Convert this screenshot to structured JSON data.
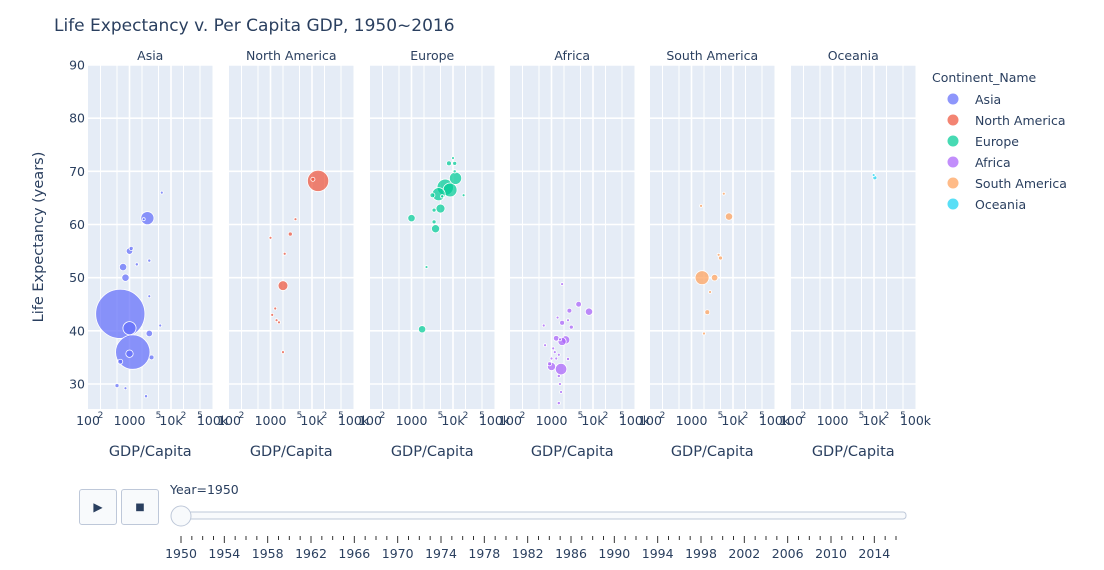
{
  "chart_data": {
    "type": "scatter",
    "title": "Life Expectancy v. Per Capita GDP, 1950~2016",
    "xlabel": "GDP/Capita",
    "ylabel": "Life Expectancy (years)",
    "x_scale": "log",
    "xlim": [
      100,
      100000
    ],
    "ylim": [
      25.3,
      90
    ],
    "y_ticks": [
      30,
      40,
      50,
      60,
      70,
      80,
      90
    ],
    "x_tick_labels": [
      "100",
      "2",
      "1000",
      "5",
      "10k",
      "2",
      "5",
      "100k"
    ],
    "x_tick_values": [
      100,
      200,
      1000,
      5000,
      10000,
      20000,
      50000,
      100000
    ],
    "grid": true,
    "legend": {
      "title": "Continent_Name",
      "placement": "right"
    },
    "facets": [
      {
        "name": "Asia",
        "color": "#636efa",
        "points": [
          {
            "x": 2700,
            "y": 61.2,
            "s": 1.6
          },
          {
            "x": 1100,
            "y": 55.5,
            "s": 0.5
          },
          {
            "x": 1000,
            "y": 55,
            "s": 0.8
          },
          {
            "x": 700,
            "y": 52,
            "s": 0.9
          },
          {
            "x": 1500,
            "y": 52.5,
            "s": 0.4
          },
          {
            "x": 3000,
            "y": 53.2,
            "s": 0.4
          },
          {
            "x": 800,
            "y": 50,
            "s": 0.9
          },
          {
            "x": 600,
            "y": 43.2,
            "s": 6.0
          },
          {
            "x": 1000,
            "y": 40.5,
            "s": 1.6
          },
          {
            "x": 3000,
            "y": 46.5,
            "s": 0.3
          },
          {
            "x": 5500,
            "y": 41,
            "s": 0.3
          },
          {
            "x": 1200,
            "y": 36,
            "s": 4.2
          },
          {
            "x": 3000,
            "y": 39.5,
            "s": 0.8
          },
          {
            "x": 3400,
            "y": 35,
            "s": 0.6
          },
          {
            "x": 1000,
            "y": 35.7,
            "s": 0.9
          },
          {
            "x": 600,
            "y": 34.2,
            "s": 0.6
          },
          {
            "x": 500,
            "y": 29.7,
            "s": 0.5
          },
          {
            "x": 800,
            "y": 29.2,
            "s": 0.3
          },
          {
            "x": 2500,
            "y": 27.7,
            "s": 0.4
          },
          {
            "x": 6000,
            "y": 66,
            "s": 0.2
          },
          {
            "x": 2200,
            "y": 61,
            "s": 0.2
          }
        ]
      },
      {
        "name": "North America",
        "color": "#ef553b",
        "points": [
          {
            "x": 14000,
            "y": 68.2,
            "s": 2.6
          },
          {
            "x": 10500,
            "y": 68.5,
            "s": 0.5
          },
          {
            "x": 4000,
            "y": 61,
            "s": 0.3
          },
          {
            "x": 3000,
            "y": 58.2,
            "s": 0.5
          },
          {
            "x": 1000,
            "y": 57.5,
            "s": 0.2
          },
          {
            "x": 2200,
            "y": 54.5,
            "s": 0.2
          },
          {
            "x": 2000,
            "y": 48.5,
            "s": 1.2
          },
          {
            "x": 1300,
            "y": 44.2,
            "s": 0.3
          },
          {
            "x": 1100,
            "y": 43,
            "s": 0.3
          },
          {
            "x": 1400,
            "y": 42,
            "s": 0.3
          },
          {
            "x": 1600,
            "y": 41.6,
            "s": 0.3
          },
          {
            "x": 2000,
            "y": 36,
            "s": 0.3
          }
        ]
      },
      {
        "name": "Europe",
        "color": "#00cc96",
        "points": [
          {
            "x": 10000,
            "y": 72.5,
            "s": 0.3
          },
          {
            "x": 8000,
            "y": 71.5,
            "s": 0.6
          },
          {
            "x": 11000,
            "y": 71.5,
            "s": 0.5
          },
          {
            "x": 11000,
            "y": 70,
            "s": 0.4
          },
          {
            "x": 11500,
            "y": 68.7,
            "s": 1.5
          },
          {
            "x": 6500,
            "y": 67,
            "s": 2.0
          },
          {
            "x": 8500,
            "y": 66.5,
            "s": 1.7
          },
          {
            "x": 4500,
            "y": 65.7,
            "s": 1.6
          },
          {
            "x": 3200,
            "y": 65.5,
            "s": 0.6
          },
          {
            "x": 5500,
            "y": 65.3,
            "s": 0.4
          },
          {
            "x": 3500,
            "y": 62.7,
            "s": 0.5
          },
          {
            "x": 5000,
            "y": 63,
            "s": 1.1
          },
          {
            "x": 1000,
            "y": 61.2,
            "s": 0.9
          },
          {
            "x": 3500,
            "y": 60.5,
            "s": 0.5
          },
          {
            "x": 3800,
            "y": 59.2,
            "s": 1.0
          },
          {
            "x": 1800,
            "y": 40.3,
            "s": 0.9
          },
          {
            "x": 2300,
            "y": 52,
            "s": 0.2
          },
          {
            "x": 18000,
            "y": 65.5,
            "s": 0.2
          }
        ]
      },
      {
        "name": "Africa",
        "color": "#ab63fa",
        "points": [
          {
            "x": 1800,
            "y": 48.8,
            "s": 0.3
          },
          {
            "x": 4500,
            "y": 45,
            "s": 0.7
          },
          {
            "x": 2700,
            "y": 43.8,
            "s": 0.6
          },
          {
            "x": 8000,
            "y": 43.6,
            "s": 0.9
          },
          {
            "x": 1400,
            "y": 42.5,
            "s": 0.3
          },
          {
            "x": 1800,
            "y": 41.5,
            "s": 0.6
          },
          {
            "x": 3000,
            "y": 40.7,
            "s": 0.5
          },
          {
            "x": 1300,
            "y": 38.6,
            "s": 0.7
          },
          {
            "x": 1600,
            "y": 38.4,
            "s": 0.3
          },
          {
            "x": 700,
            "y": 37.3,
            "s": 0.3
          },
          {
            "x": 2200,
            "y": 38.3,
            "s": 1.0
          },
          {
            "x": 1800,
            "y": 38,
            "s": 1.0
          },
          {
            "x": 1100,
            "y": 36.7,
            "s": 0.3
          },
          {
            "x": 1200,
            "y": 36,
            "s": 0.3
          },
          {
            "x": 1000,
            "y": 34.8,
            "s": 0.3
          },
          {
            "x": 1300,
            "y": 34.8,
            "s": 0.3
          },
          {
            "x": 1500,
            "y": 35.5,
            "s": 0.3
          },
          {
            "x": 2500,
            "y": 34.7,
            "s": 0.4
          },
          {
            "x": 900,
            "y": 33.8,
            "s": 0.5
          },
          {
            "x": 1000,
            "y": 33.3,
            "s": 1.0
          },
          {
            "x": 1700,
            "y": 32.8,
            "s": 1.4
          },
          {
            "x": 1500,
            "y": 31.5,
            "s": 0.4
          },
          {
            "x": 1600,
            "y": 30,
            "s": 0.3
          },
          {
            "x": 1700,
            "y": 28.5,
            "s": 0.3
          },
          {
            "x": 1500,
            "y": 26.4,
            "s": 0.4
          },
          {
            "x": 650,
            "y": 41,
            "s": 0.2
          },
          {
            "x": 2500,
            "y": 42,
            "s": 0.2
          }
        ]
      },
      {
        "name": "South America",
        "color": "#ffa15a",
        "points": [
          {
            "x": 6000,
            "y": 65.8,
            "s": 0.3
          },
          {
            "x": 1700,
            "y": 63.5,
            "s": 0.3
          },
          {
            "x": 8000,
            "y": 61.5,
            "s": 0.9
          },
          {
            "x": 4500,
            "y": 54.3,
            "s": 0.3
          },
          {
            "x": 5000,
            "y": 53.7,
            "s": 0.5
          },
          {
            "x": 1800,
            "y": 50,
            "s": 1.7
          },
          {
            "x": 3600,
            "y": 50,
            "s": 0.8
          },
          {
            "x": 2800,
            "y": 47.3,
            "s": 0.3
          },
          {
            "x": 2400,
            "y": 43.5,
            "s": 0.6
          },
          {
            "x": 2000,
            "y": 39.5,
            "s": 0.3
          }
        ]
      },
      {
        "name": "Oceania",
        "color": "#19d3f3",
        "points": [
          {
            "x": 10500,
            "y": 68.8,
            "s": 0.5
          },
          {
            "x": 9800,
            "y": 69.3,
            "s": 0.2
          }
        ]
      }
    ]
  },
  "slider": {
    "current_label": "Year=1950",
    "min_year": 1950,
    "max_year": 2016,
    "current_year": 1950,
    "labels": [
      "1950",
      "1954",
      "1958",
      "1962",
      "1966",
      "1970",
      "1974",
      "1978",
      "1982",
      "1986",
      "1990",
      "1994",
      "1998",
      "2002",
      "2006",
      "2010",
      "2014"
    ]
  },
  "controls": {
    "play_icon": "▶",
    "stop_icon": "■"
  }
}
